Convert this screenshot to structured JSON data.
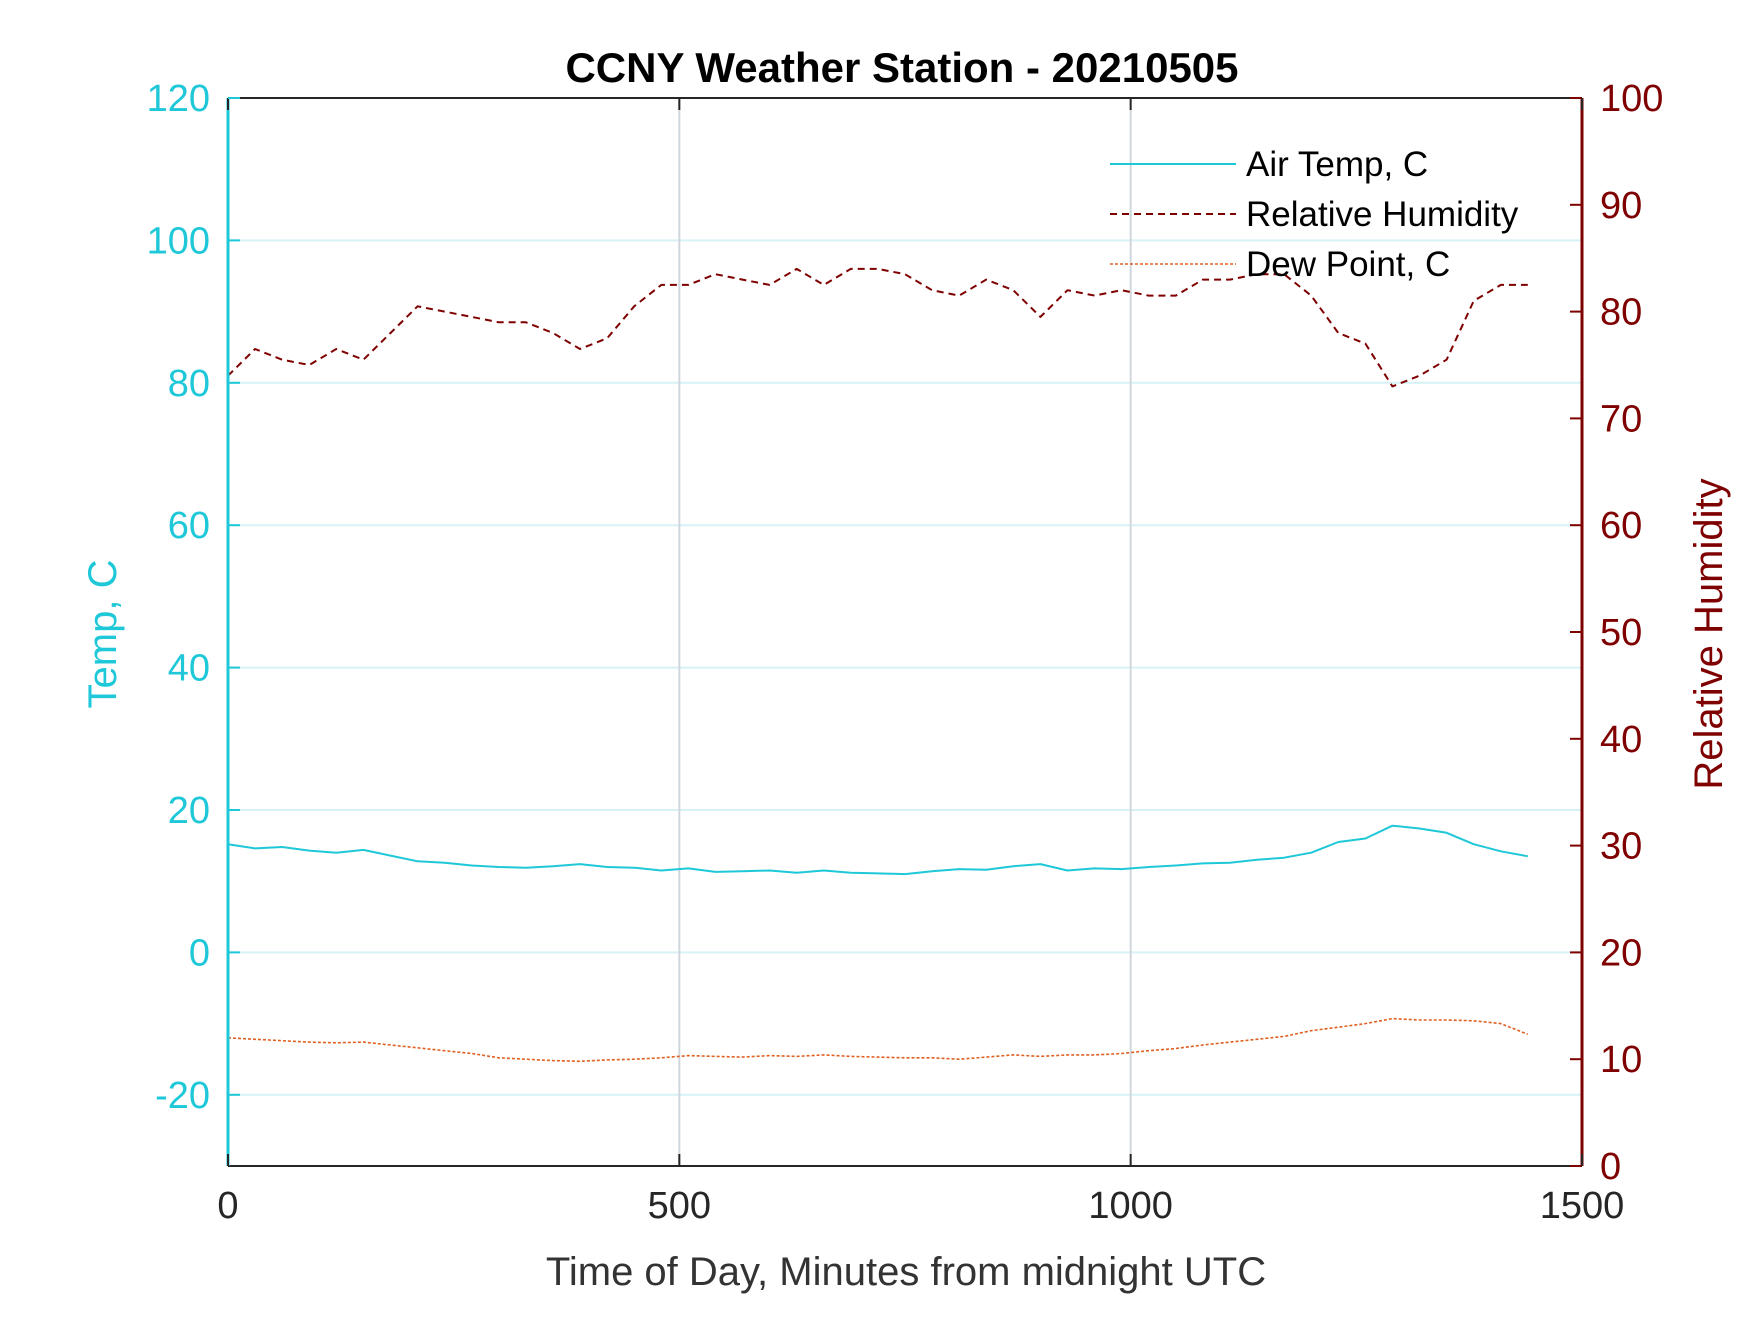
{
  "chart_data": {
    "type": "line",
    "title": "CCNY Weather Station - 20210505",
    "xlabel": "Time of Day, Minutes from midnight UTC",
    "ylabel_left": "Temp, C",
    "ylabel_right": "Relative Humidity",
    "xlim": [
      0,
      1500
    ],
    "ylim_left": [
      -30,
      120
    ],
    "ylim_right": [
      0,
      100
    ],
    "x_ticks": [
      0,
      500,
      1000,
      1500
    ],
    "y_ticks_left": [
      -20,
      0,
      20,
      40,
      60,
      80,
      100,
      120
    ],
    "y_ticks_right": [
      0,
      10,
      20,
      30,
      40,
      50,
      60,
      70,
      80,
      90,
      100
    ],
    "grid": true,
    "legend_position": "top-right",
    "colors": {
      "left_axis": "#1ec8d8",
      "right_axis": "#7f0000",
      "air_temp": "#1ec8d8",
      "relative_humidity": "#7f0000",
      "dew_point": "#e06020",
      "grid": "#d6f2f6",
      "vgrid": "#cfd6dc"
    },
    "series": [
      {
        "name": "Air Temp, C",
        "axis": "left",
        "style": "solid",
        "x": [
          0,
          30,
          60,
          90,
          120,
          150,
          180,
          210,
          240,
          270,
          300,
          330,
          360,
          390,
          420,
          450,
          480,
          510,
          540,
          570,
          600,
          630,
          660,
          690,
          720,
          750,
          780,
          810,
          840,
          870,
          900,
          930,
          960,
          990,
          1020,
          1050,
          1080,
          1110,
          1140,
          1170,
          1200,
          1230,
          1260,
          1290,
          1320,
          1350,
          1380,
          1410,
          1440
        ],
        "y": [
          15.2,
          14.6,
          14.8,
          14.3,
          14.0,
          14.4,
          13.6,
          12.8,
          12.6,
          12.2,
          12.0,
          11.9,
          12.1,
          12.4,
          12.0,
          11.9,
          11.5,
          11.8,
          11.3,
          11.4,
          11.5,
          11.2,
          11.5,
          11.2,
          11.1,
          11.0,
          11.4,
          11.7,
          11.6,
          12.1,
          12.4,
          11.5,
          11.8,
          11.7,
          12.0,
          12.2,
          12.5,
          12.6,
          13.0,
          13.3,
          14.0,
          15.5,
          16.0,
          17.8,
          17.4,
          16.8,
          15.2,
          14.2,
          13.5
        ]
      },
      {
        "name": "Relative Humidity",
        "axis": "right",
        "style": "dashed",
        "x": [
          0,
          30,
          60,
          90,
          120,
          150,
          180,
          210,
          240,
          270,
          300,
          330,
          360,
          390,
          420,
          450,
          480,
          510,
          540,
          570,
          600,
          630,
          660,
          690,
          720,
          750,
          780,
          810,
          840,
          870,
          900,
          930,
          960,
          990,
          1020,
          1050,
          1080,
          1110,
          1140,
          1170,
          1200,
          1230,
          1260,
          1290,
          1320,
          1350,
          1380,
          1410,
          1440
        ],
        "y": [
          74,
          76.5,
          75.5,
          75,
          76.5,
          75.5,
          78,
          80.5,
          80,
          79.5,
          79,
          79,
          78,
          76.5,
          77.5,
          80.5,
          82.5,
          82.5,
          83.5,
          83,
          82.5,
          84,
          82.5,
          84,
          84,
          83.5,
          82,
          81.5,
          83,
          82,
          79.5,
          82,
          81.5,
          82,
          81.5,
          81.5,
          83,
          83,
          83.5,
          83.5,
          81.5,
          78,
          77,
          73,
          74,
          75.5,
          81,
          82.5,
          82.5
        ]
      },
      {
        "name": "Dew Point, C",
        "axis": "left",
        "style": "dotted",
        "x": [
          0,
          30,
          60,
          90,
          120,
          150,
          180,
          210,
          240,
          270,
          300,
          330,
          360,
          390,
          420,
          450,
          480,
          510,
          540,
          570,
          600,
          630,
          660,
          690,
          720,
          750,
          780,
          810,
          840,
          870,
          900,
          930,
          960,
          990,
          1020,
          1050,
          1080,
          1110,
          1140,
          1170,
          1200,
          1230,
          1260,
          1290,
          1320,
          1350,
          1380,
          1410,
          1440
        ],
        "y": [
          -12,
          -12.2,
          -12.4,
          -12.6,
          -12.7,
          -12.6,
          -13.0,
          -13.4,
          -13.8,
          -14.2,
          -14.8,
          -15.0,
          -15.2,
          -15.3,
          -15.1,
          -15.0,
          -14.8,
          -14.5,
          -14.6,
          -14.7,
          -14.5,
          -14.6,
          -14.4,
          -14.6,
          -14.7,
          -14.8,
          -14.8,
          -15.0,
          -14.7,
          -14.4,
          -14.6,
          -14.4,
          -14.4,
          -14.2,
          -13.8,
          -13.5,
          -13.0,
          -12.6,
          -12.2,
          -11.8,
          -11.0,
          -10.5,
          -10.0,
          -9.3,
          -9.5,
          -9.5,
          -9.6,
          -10.0,
          -11.5
        ]
      }
    ]
  }
}
